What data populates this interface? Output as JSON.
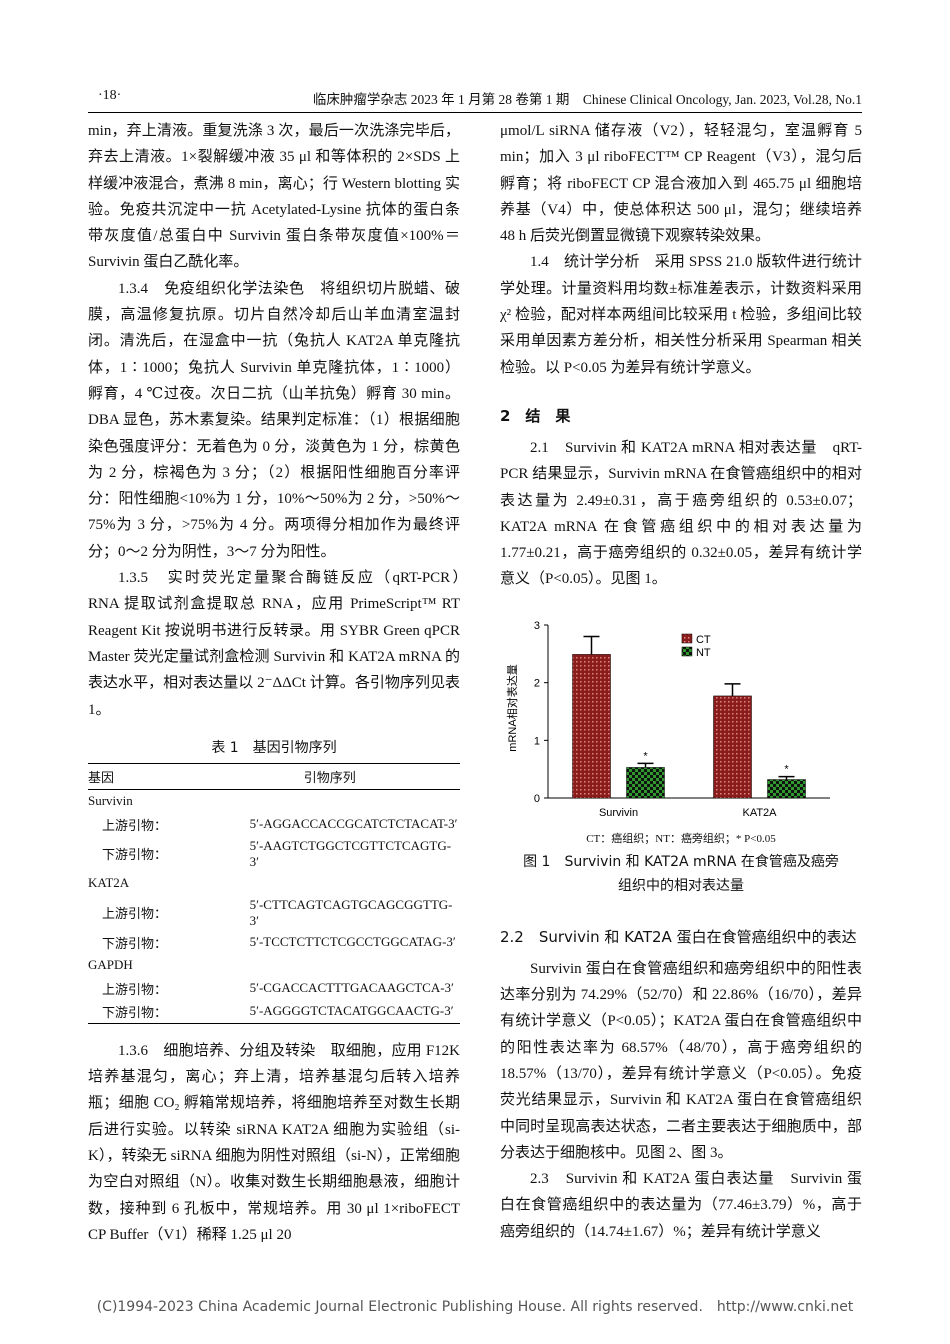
{
  "header": {
    "page_num": "·18·",
    "journal": "临床肿瘤学杂志 2023 年 1 月第 28 卷第 1 期　Chinese Clinical Oncology, Jan. 2023, Vol.28, No.1"
  },
  "left": {
    "p0": "min，弃上清液。重复洗涤 3 次，最后一次洗涤完毕后，弃去上清液。1×裂解缓冲液 35 μl 和等体积的 2×SDS 上样缓冲液混合，煮沸 8 min，离心；行 Western blotting 实验。免疫共沉淀中一抗 Acetylated-Lysine 抗体的蛋白条带灰度值/总蛋白中 Survivin 蛋白条带灰度值×100%＝Survivin 蛋白乙酰化率。",
    "p1": "1.3.4　免疫组织化学法染色　将组织切片脱蜡、破膜，高温修复抗原。切片自然冷却后山羊血清室温封闭。清洗后，在湿盒中一抗（兔抗人 KAT2A 单克隆抗体，1∶1000；兔抗人 Survivin 单克隆抗体，1∶1000）孵育，4 ℃过夜。次日二抗（山羊抗兔）孵育 30 min。DBA 显色，苏木素复染。结果判定标准：（1）根据细胞染色强度评分：无着色为 0 分，淡黄色为 1 分，棕黄色为 2 分，棕褐色为 3 分；（2）根据阳性细胞百分率评分：阳性细胞<10%为 1 分，10%～50%为 2 分，>50%～75%为 3 分，>75%为 4 分。两项得分相加作为最终评分；0～2 分为阴性，3～7 分为阳性。",
    "p2": "1.3.5　实时荧光定量聚合酶链反应（qRT-PCR）　RNA 提取试剂盒提取总 RNA，应用 PrimeScript™ RT Reagent Kit 按说明书进行反转录。用 SYBR Green qPCR Master 荧光定量试剂盒检测 Survivin 和 KAT2A mRNA 的表达水平，相对表达量以 2⁻ΔΔCt 计算。各引物序列见表 1。",
    "p3": "1.3.6　细胞培养、分组及转染　取细胞，应用 F12K 培养基混匀，离心；弃上清，培养基混匀后转入培养瓶；细胞 CO₂ 孵箱常规培养，将细胞培养至对数生长期后进行实验。以转染 siRNA KAT2A 细胞为实验组（si-K），转染无 siRNA 细胞为阴性对照组（si-N），正常细胞为空白对照组（N）。收集对数生长期细胞悬液，细胞计数，接种到 6 孔板中，常规培养。用 30 μl 1×riboFECT CP Buffer（V1）稀释 1.25 μl 20"
  },
  "table": {
    "title": "表 1　基因引物序列",
    "headers": [
      "基因",
      "引物序列"
    ],
    "groups": [
      {
        "gene": "Survivin",
        "rows": [
          [
            "上游引物：",
            "5′-AGGACCACCGCATCTCTACAT-3′"
          ],
          [
            "下游引物：",
            "5′-AAGTCTGGCTCGTTCTCAGTG-3′"
          ]
        ]
      },
      {
        "gene": "KAT2A",
        "rows": [
          [
            "上游引物：",
            "5′-CTTCAGTCAGTGCAGCGGTTG-3′"
          ],
          [
            "下游引物：",
            "5′-TCCTCTTCTCGCCTGGCATAG-3′"
          ]
        ]
      },
      {
        "gene": "GAPDH",
        "rows": [
          [
            "上游引物：",
            "5′-CGACCACTTTGACAAGCTCA-3′"
          ],
          [
            "下游引物：",
            "5′-AGGGGTCTACATGGCAACTG-3′"
          ]
        ]
      }
    ]
  },
  "right": {
    "r0": "μmol/L siRNA 储存液（V2），轻轻混匀，室温孵育 5 min；加入 3 μl riboFECT™ CP Reagent（V3），混匀后孵育；将 riboFECT CP 混合液加入到 465.75 μl 细胞培养基（V4）中，使总体积达 500 μl，混匀；继续培养 48 h 后荧光倒置显微镜下观察转染效果。",
    "r1": "1.4　统计学分析　采用 SPSS 21.0 版软件进行统计学处理。计量资料用均数±标准差表示，计数资料采用 χ² 检验，配对样本两组间比较采用 t 检验，多组间比较采用单因素方差分析，相关性分析采用 Spearman 相关检验。以 P<0.05 为差异有统计学意义。",
    "h2": "2　结　果",
    "r2": "2.1　Survivin 和 KAT2A mRNA 相对表达量　qRT-PCR 结果显示，Survivin mRNA 在食管癌组织中的相对表达量为 2.49±0.31，高于癌旁组织的 0.53±0.07；KAT2A mRNA 在食管癌组织中的相对表达量为 1.77±0.21，高于癌旁组织的 0.32±0.05，差异有统计学意义（P<0.05）。见图 1。",
    "fig_note": "CT：癌组织；NT：癌旁组织；* P<0.05",
    "fig_caption": "图 1　Survivin 和 KAT2A mRNA 在食管癌及癌旁组织中的相对表达量",
    "h22": "2.2　Survivin 和 KAT2A 蛋白在食管癌组织中的表达",
    "r3": "Survivin 蛋白在食管癌组织和癌旁组织中的阳性表达率分别为 74.29%（52/70）和 22.86%（16/70），差异有统计学意义（P<0.05）；KAT2A 蛋白在食管癌组织中的阳性表达率为 68.57%（48/70），高于癌旁组织的 18.57%（13/70），差异有统计学意义（P<0.05）。免疫荧光结果显示，Survivin 和 KAT2A 蛋白在食管癌组织中同时呈现高表达状态，二者主要表达于细胞质中，部分表达于细胞核中。见图 2、图 3。",
    "r4": "2.3　Survivin 和 KAT2A 蛋白表达量　Survivin 蛋白在食管癌组织中的表达量为（77.46±3.79）%，高于癌旁组织的（14.74±1.67）%；差异有统计学意义"
  },
  "chart_data": {
    "type": "bar",
    "y_label": "mRNA相对表达量",
    "categories": [
      "Survivin",
      "KAT2A"
    ],
    "series": [
      {
        "name": "CT",
        "color": "#8b1c1c",
        "values": [
          2.49,
          1.77
        ],
        "errors": [
          0.31,
          0.21
        ]
      },
      {
        "name": "NT",
        "color": "#2e9a2e",
        "values": [
          0.53,
          0.32
        ],
        "errors": [
          0.07,
          0.05
        ],
        "annotations": [
          "*",
          "*"
        ]
      }
    ],
    "ylim": [
      0,
      3
    ],
    "yticks": [
      0,
      1,
      2,
      3
    ],
    "legend": "upper right"
  },
  "footer": "(C)1994-2023 China Academic Journal Electronic Publishing House. All rights reserved.　http://www.cnki.net"
}
